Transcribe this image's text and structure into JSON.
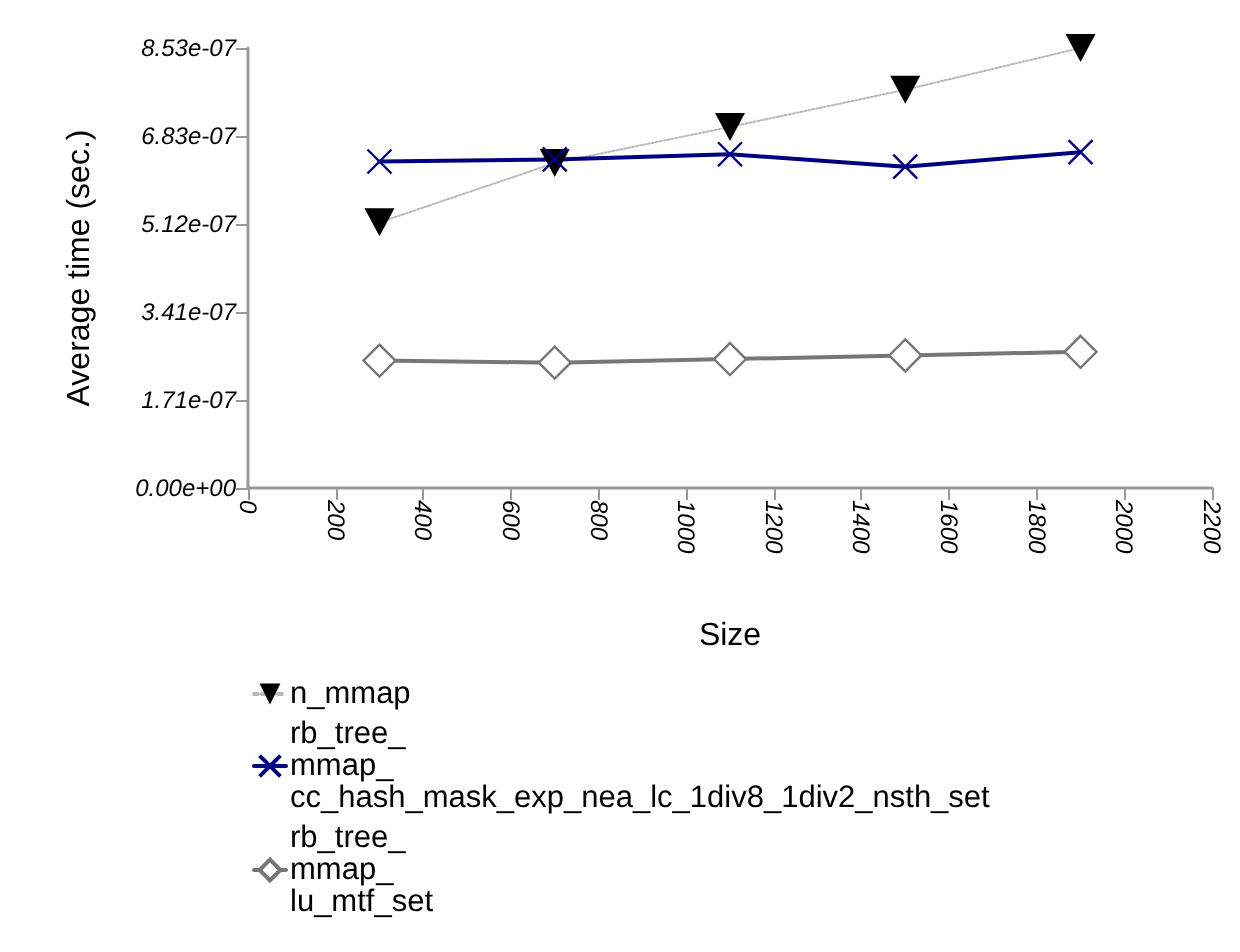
{
  "chart_data": {
    "type": "line",
    "xlabel": "Size",
    "ylabel": "Average time (sec.)",
    "x": [
      300,
      700,
      1100,
      1500,
      1900
    ],
    "series": [
      {
        "name": "n_mmap",
        "color": "#000000",
        "marker": "triangle",
        "line_style": "dotted",
        "values": [
          5.15e-07,
          6.3e-07,
          7e-07,
          7.72e-07,
          8.53e-07
        ]
      },
      {
        "name": "rb_tree_\nmmap_\ncc_hash_mask_exp_nea_lc_1div8_1div2_nsth_set",
        "color": "#000080",
        "marker": "cross",
        "line_style": "solid",
        "values": [
          6.33e-07,
          6.37e-07,
          6.47e-07,
          6.23e-07,
          6.51e-07
        ]
      },
      {
        "name": "rb_tree_\nmmap_\nlu_mtf_set",
        "color": "#777777",
        "marker": "diamond",
        "line_style": "solid",
        "values": [
          2.47e-07,
          2.43e-07,
          2.5e-07,
          2.57e-07,
          2.64e-07
        ]
      }
    ],
    "xlim": [
      0,
      2200
    ],
    "xticks": [
      0,
      200,
      400,
      600,
      800,
      1000,
      1200,
      1400,
      1600,
      1800,
      2000,
      2200
    ],
    "ylim": [
      0,
      8.53e-07
    ],
    "yticks": [
      {
        "value": 0,
        "label": "0.00e+00"
      },
      {
        "value": 1.71e-07,
        "label": "1.71e-07"
      },
      {
        "value": 3.41e-07,
        "label": "3.41e-07"
      },
      {
        "value": 5.12e-07,
        "label": "5.12e-07"
      },
      {
        "value": 6.83e-07,
        "label": "6.83e-07"
      },
      {
        "value": 8.53e-07,
        "label": "8.53e-07"
      }
    ],
    "legend": "bottom"
  }
}
